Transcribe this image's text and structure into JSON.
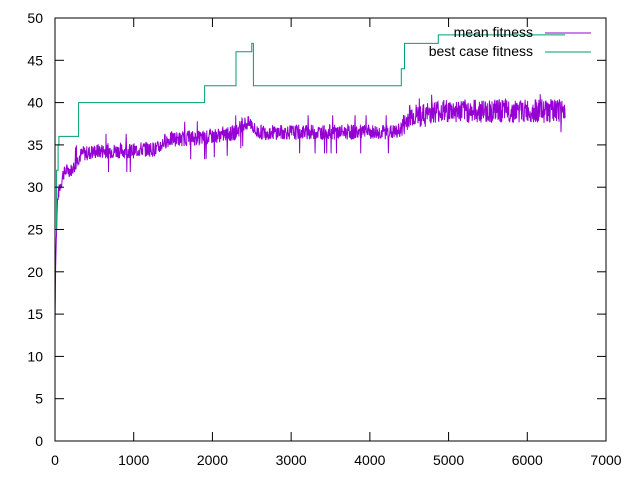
{
  "colors": {
    "mean": "#9400d3",
    "best": "#009e73",
    "axis": "#000000",
    "background": "#ffffff"
  },
  "chart_data": {
    "type": "line",
    "title": "",
    "xlabel": "",
    "ylabel": "",
    "xlim": [
      0,
      7000
    ],
    "ylim": [
      0,
      50
    ],
    "x_ticks": [
      0,
      1000,
      2000,
      3000,
      4000,
      5000,
      6000,
      7000
    ],
    "y_ticks": [
      0,
      5,
      10,
      15,
      20,
      25,
      30,
      35,
      40,
      45,
      50
    ],
    "x_tick_labels": [
      "0",
      "1000",
      "2000",
      "3000",
      "4000",
      "5000",
      "6000",
      "7000"
    ],
    "y_tick_labels": [
      "0",
      "5",
      "10",
      "15",
      "20",
      "25",
      "30",
      "35",
      "40",
      "45",
      "50"
    ],
    "grid": false,
    "legend_position": "top-right",
    "series": [
      {
        "name": "mean fitness",
        "color": "#9400d3",
        "style": "noisy-line",
        "x": [
          0,
          10,
          20,
          30,
          40,
          60,
          80,
          100,
          150,
          200,
          250,
          300,
          350,
          400,
          500,
          600,
          700,
          800,
          900,
          1000,
          1100,
          1200,
          1300,
          1350,
          1400,
          1500,
          1600,
          1700,
          1800,
          1900,
          2000,
          2100,
          2200,
          2300,
          2350,
          2400,
          2450,
          2500,
          2550,
          2600,
          2700,
          2800,
          2900,
          3000,
          3200,
          3400,
          3600,
          3800,
          4000,
          4200,
          4350,
          4400,
          4450,
          4500,
          4600,
          4700,
          4800,
          5000,
          5200,
          5400,
          5600,
          5800,
          6000,
          6200,
          6400,
          6480
        ],
        "y": [
          14,
          22,
          25,
          28,
          29,
          30,
          30.5,
          31.5,
          32,
          32,
          32.5,
          33.5,
          34,
          34,
          34.2,
          34.3,
          34.3,
          34.3,
          34.3,
          34.3,
          34.5,
          34.5,
          34.5,
          35,
          35.5,
          35.7,
          35.7,
          35.8,
          35.8,
          35.8,
          36,
          36.2,
          36.2,
          36.5,
          37,
          37.5,
          37.5,
          37.5,
          36.5,
          36.5,
          36.5,
          36.5,
          36.5,
          36.5,
          36.5,
          36.5,
          36.5,
          36.5,
          36.5,
          36.5,
          36.5,
          37,
          37.5,
          38.5,
          38.5,
          38.5,
          39,
          39,
          39,
          39,
          39,
          39,
          39,
          39,
          39,
          39
        ]
      },
      {
        "name": "best case fitness",
        "color": "#009e73",
        "style": "step",
        "x": [
          0,
          20,
          40,
          50,
          280,
          300,
          1880,
          1900,
          2270,
          2300,
          2470,
          2500,
          2520,
          4360,
          4400,
          4440,
          4850,
          4870,
          6480
        ],
        "y": [
          25,
          32,
          35,
          36,
          36,
          40,
          40,
          42,
          42,
          46,
          46,
          47,
          42,
          42,
          44,
          47,
          47,
          48,
          48
        ]
      }
    ]
  }
}
